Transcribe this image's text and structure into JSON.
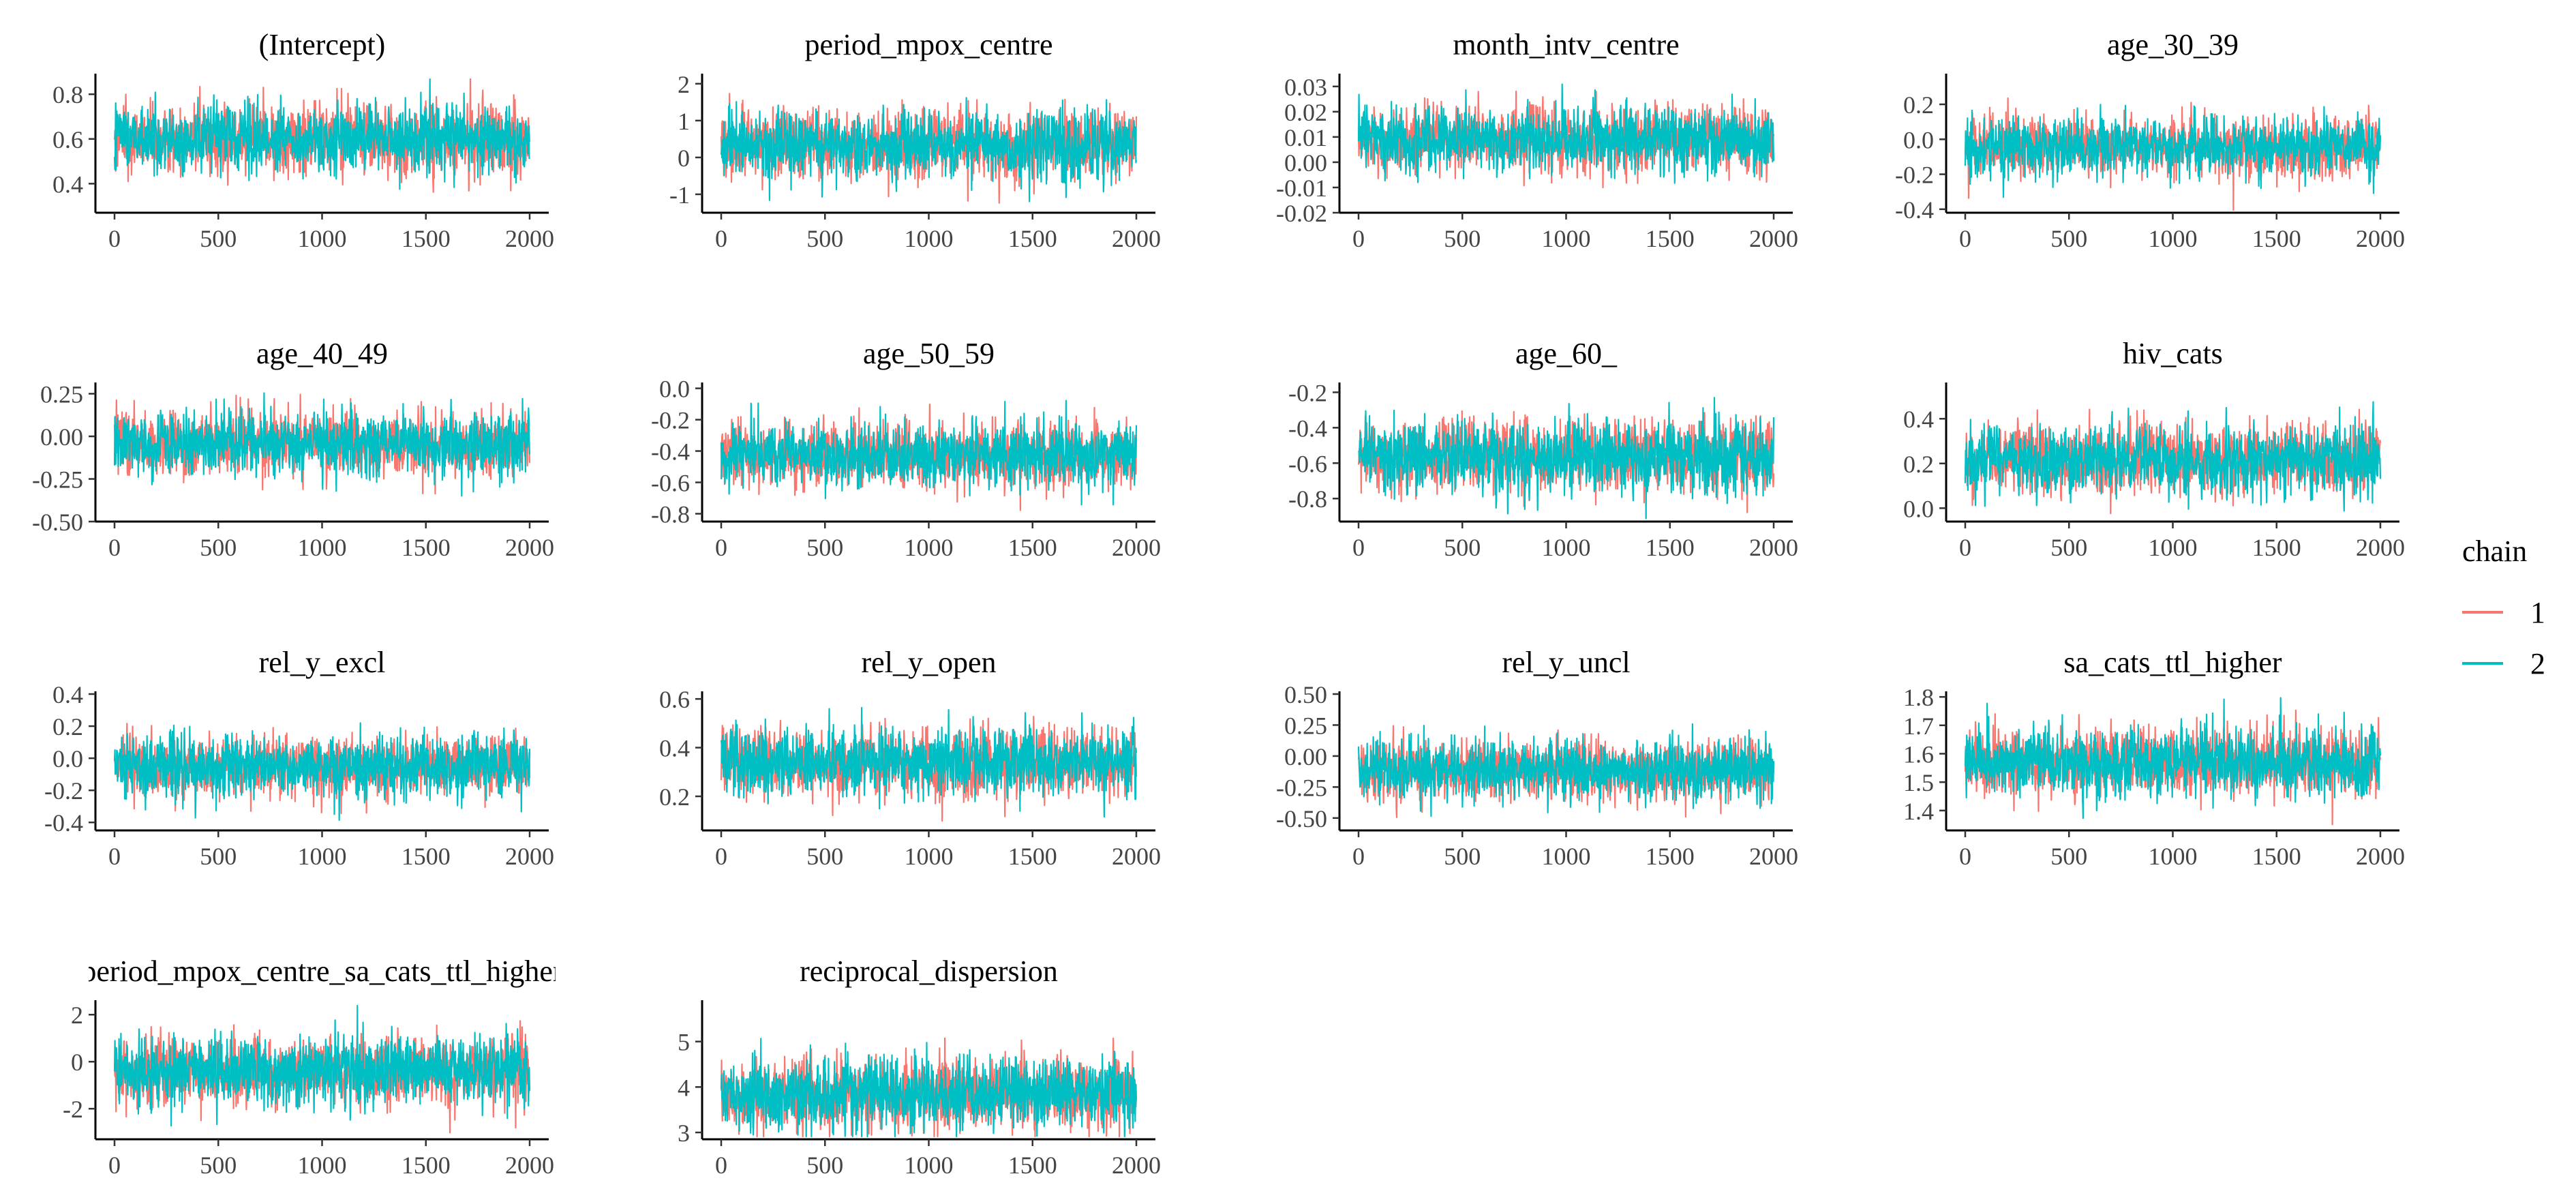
{
  "legend": {
    "title": "chain",
    "entries": [
      {
        "label": "1",
        "color": "#F8766D"
      },
      {
        "label": "2",
        "color": "#00BFC4"
      }
    ]
  },
  "chart_data": [
    {
      "type": "line",
      "title": "(Intercept)",
      "xlim": [
        0,
        2000
      ],
      "ylim": [
        0.27,
        0.88
      ],
      "x_ticks": [
        0,
        500,
        1000,
        1500,
        2000
      ],
      "x_tick_labels": [
        "0",
        "500",
        "1000",
        "1500",
        "2000"
      ],
      "y_ticks": [
        0.4,
        0.6,
        0.8
      ],
      "y_tick_labels": [
        "0.4",
        "0.6",
        "0.8"
      ],
      "series": [
        {
          "name": "1",
          "color": "#F8766D",
          "center": 0.6,
          "spread": 0.09
        },
        {
          "name": "2",
          "color": "#00BFC4",
          "center": 0.6,
          "spread": 0.09
        }
      ]
    },
    {
      "type": "line",
      "title": "period_mpox_centre",
      "xlim": [
        0,
        2000
      ],
      "ylim": [
        -1.5,
        2.2
      ],
      "x_ticks": [
        0,
        500,
        1000,
        1500,
        2000
      ],
      "x_tick_labels": [
        "0",
        "500",
        "1000",
        "1500",
        "2000"
      ],
      "y_ticks": [
        -1,
        0,
        1,
        2
      ],
      "y_tick_labels": [
        "-1",
        "0",
        "1",
        "2"
      ],
      "series": [
        {
          "name": "1",
          "color": "#F8766D",
          "center": 0.35,
          "spread": 0.55
        },
        {
          "name": "2",
          "color": "#00BFC4",
          "center": 0.35,
          "spread": 0.55
        }
      ]
    },
    {
      "type": "line",
      "title": "month_intv_centre",
      "xlim": [
        0,
        2000
      ],
      "ylim": [
        -0.02,
        0.034
      ],
      "x_ticks": [
        0,
        500,
        1000,
        1500,
        2000
      ],
      "x_tick_labels": [
        "0",
        "500",
        "1000",
        "1500",
        "2000"
      ],
      "y_ticks": [
        -0.02,
        -0.01,
        0.0,
        0.01,
        0.02,
        0.03
      ],
      "y_tick_labels": [
        "-0.02",
        "-0.01",
        "0.00",
        "0.01",
        "0.02",
        "0.03"
      ],
      "series": [
        {
          "name": "1",
          "color": "#F8766D",
          "center": 0.009,
          "spread": 0.0075
        },
        {
          "name": "2",
          "color": "#00BFC4",
          "center": 0.009,
          "spread": 0.0075
        }
      ]
    },
    {
      "type": "line",
      "title": "age_30_39",
      "xlim": [
        0,
        2000
      ],
      "ylim": [
        -0.42,
        0.36
      ],
      "x_ticks": [
        0,
        500,
        1000,
        1500,
        2000
      ],
      "x_tick_labels": [
        "0",
        "500",
        "1000",
        "1500",
        "2000"
      ],
      "y_ticks": [
        -0.4,
        -0.2,
        0.0,
        0.2
      ],
      "y_tick_labels": [
        "-0.4",
        "-0.2",
        "0.0",
        "0.2"
      ],
      "series": [
        {
          "name": "1",
          "color": "#F8766D",
          "center": -0.04,
          "spread": 0.1
        },
        {
          "name": "2",
          "color": "#00BFC4",
          "center": -0.04,
          "spread": 0.1
        }
      ]
    },
    {
      "type": "line",
      "title": "age_40_49",
      "xlim": [
        0,
        2000
      ],
      "ylim": [
        -0.5,
        0.3
      ],
      "x_ticks": [
        0,
        500,
        1000,
        1500,
        2000
      ],
      "x_tick_labels": [
        "0",
        "500",
        "1000",
        "1500",
        "2000"
      ],
      "y_ticks": [
        -0.5,
        -0.25,
        0.0,
        0.25
      ],
      "y_tick_labels": [
        "-0.50",
        "-0.25",
        "0.00",
        "0.25"
      ],
      "series": [
        {
          "name": "1",
          "color": "#F8766D",
          "center": -0.04,
          "spread": 0.11
        },
        {
          "name": "2",
          "color": "#00BFC4",
          "center": -0.04,
          "spread": 0.11
        }
      ]
    },
    {
      "type": "line",
      "title": "age_50_59",
      "xlim": [
        0,
        2000
      ],
      "ylim": [
        -0.85,
        0.02
      ],
      "x_ticks": [
        0,
        500,
        1000,
        1500,
        2000
      ],
      "x_tick_labels": [
        "0",
        "500",
        "1000",
        "1500",
        "2000"
      ],
      "y_ticks": [
        -0.8,
        -0.6,
        -0.4,
        -0.2,
        0.0
      ],
      "y_tick_labels": [
        "-0.8",
        "-0.6",
        "-0.4",
        "-0.2",
        "0.0"
      ],
      "series": [
        {
          "name": "1",
          "color": "#F8766D",
          "center": -0.42,
          "spread": 0.12
        },
        {
          "name": "2",
          "color": "#00BFC4",
          "center": -0.42,
          "spread": 0.12
        }
      ]
    },
    {
      "type": "line",
      "title": "age_60_",
      "xlim": [
        0,
        2000
      ],
      "ylim": [
        -0.93,
        -0.16
      ],
      "x_ticks": [
        0,
        500,
        1000,
        1500,
        2000
      ],
      "x_tick_labels": [
        "0",
        "500",
        "1000",
        "1500",
        "2000"
      ],
      "y_ticks": [
        -0.8,
        -0.6,
        -0.4,
        -0.2
      ],
      "y_tick_labels": [
        "-0.8",
        "-0.6",
        "-0.4",
        "-0.2"
      ],
      "series": [
        {
          "name": "1",
          "color": "#F8766D",
          "center": -0.56,
          "spread": 0.12
        },
        {
          "name": "2",
          "color": "#00BFC4",
          "center": -0.56,
          "spread": 0.12
        }
      ]
    },
    {
      "type": "line",
      "title": "hiv_cats",
      "xlim": [
        0,
        2000
      ],
      "ylim": [
        -0.06,
        0.55
      ],
      "x_ticks": [
        0,
        500,
        1000,
        1500,
        2000
      ],
      "x_tick_labels": [
        "0",
        "500",
        "1000",
        "1500",
        "2000"
      ],
      "y_ticks": [
        0.0,
        0.2,
        0.4
      ],
      "y_tick_labels": [
        "0.0",
        "0.2",
        "0.4"
      ],
      "series": [
        {
          "name": "1",
          "color": "#F8766D",
          "center": 0.22,
          "spread": 0.09
        },
        {
          "name": "2",
          "color": "#00BFC4",
          "center": 0.22,
          "spread": 0.09
        }
      ]
    },
    {
      "type": "line",
      "title": "rel_y_excl",
      "xlim": [
        0,
        2000
      ],
      "ylim": [
        -0.45,
        0.4
      ],
      "x_ticks": [
        0,
        500,
        1000,
        1500,
        2000
      ],
      "x_tick_labels": [
        "0",
        "500",
        "1000",
        "1500",
        "2000"
      ],
      "y_ticks": [
        -0.4,
        -0.2,
        0.0,
        0.2,
        0.4
      ],
      "y_tick_labels": [
        "-0.4",
        "-0.2",
        "0.0",
        "0.2",
        "0.4"
      ],
      "series": [
        {
          "name": "1",
          "color": "#F8766D",
          "center": -0.05,
          "spread": 0.11
        },
        {
          "name": "2",
          "color": "#00BFC4",
          "center": -0.05,
          "spread": 0.11
        }
      ]
    },
    {
      "type": "line",
      "title": "rel_y_open",
      "xlim": [
        0,
        2000
      ],
      "ylim": [
        0.06,
        0.62
      ],
      "x_ticks": [
        0,
        500,
        1000,
        1500,
        2000
      ],
      "x_tick_labels": [
        "0",
        "500",
        "1000",
        "1500",
        "2000"
      ],
      "y_ticks": [
        0.2,
        0.4,
        0.6
      ],
      "y_tick_labels": [
        "0.2",
        "0.4",
        "0.6"
      ],
      "series": [
        {
          "name": "1",
          "color": "#F8766D",
          "center": 0.34,
          "spread": 0.08
        },
        {
          "name": "2",
          "color": "#00BFC4",
          "center": 0.34,
          "spread": 0.08
        }
      ]
    },
    {
      "type": "line",
      "title": "rel_y_uncl",
      "xlim": [
        0,
        2000
      ],
      "ylim": [
        -0.6,
        0.5
      ],
      "x_ticks": [
        0,
        500,
        1000,
        1500,
        2000
      ],
      "x_tick_labels": [
        "0",
        "500",
        "1000",
        "1500",
        "2000"
      ],
      "y_ticks": [
        -0.5,
        -0.25,
        0.0,
        0.25,
        0.5
      ],
      "y_tick_labels": [
        "-0.50",
        "-0.25",
        "0.00",
        "0.25",
        "0.50"
      ],
      "series": [
        {
          "name": "1",
          "color": "#F8766D",
          "center": -0.11,
          "spread": 0.14
        },
        {
          "name": "2",
          "color": "#00BFC4",
          "center": -0.11,
          "spread": 0.14
        }
      ]
    },
    {
      "type": "line",
      "title": "sa_cats_ttl_higher",
      "xlim": [
        0,
        2000
      ],
      "ylim": [
        1.33,
        1.81
      ],
      "x_ticks": [
        0,
        500,
        1000,
        1500,
        2000
      ],
      "x_tick_labels": [
        "0",
        "500",
        "1000",
        "1500",
        "2000"
      ],
      "y_ticks": [
        1.4,
        1.5,
        1.6,
        1.7,
        1.8
      ],
      "y_tick_labels": [
        "1.4",
        "1.5",
        "1.6",
        "1.7",
        "1.8"
      ],
      "series": [
        {
          "name": "1",
          "color": "#F8766D",
          "center": 1.57,
          "spread": 0.07
        },
        {
          "name": "2",
          "color": "#00BFC4",
          "center": 1.57,
          "spread": 0.07
        }
      ]
    },
    {
      "type": "line",
      "title": "period_mpox_centre_sa_cats_ttl_higher",
      "xlim": [
        0,
        2000
      ],
      "ylim": [
        -3.3,
        2.5
      ],
      "x_ticks": [
        0,
        500,
        1000,
        1500,
        2000
      ],
      "x_tick_labels": [
        "0",
        "500",
        "1000",
        "1500",
        "2000"
      ],
      "y_ticks": [
        -2,
        0,
        2
      ],
      "y_tick_labels": [
        "-2",
        "0",
        "2"
      ],
      "series": [
        {
          "name": "1",
          "color": "#F8766D",
          "center": -0.4,
          "spread": 0.85
        },
        {
          "name": "2",
          "color": "#00BFC4",
          "center": -0.4,
          "spread": 0.85
        }
      ]
    },
    {
      "type": "line",
      "title": "reciprocal_dispersion",
      "xlim": [
        0,
        2000
      ],
      "ylim": [
        2.85,
        5.85
      ],
      "x_ticks": [
        0,
        500,
        1000,
        1500,
        2000
      ],
      "x_tick_labels": [
        "0",
        "500",
        "1000",
        "1500",
        "2000"
      ],
      "y_ticks": [
        3,
        4,
        5
      ],
      "y_tick_labels": [
        "3",
        "4",
        "5"
      ],
      "series": [
        {
          "name": "1",
          "color": "#F8766D",
          "center": 3.85,
          "spread": 0.45
        },
        {
          "name": "2",
          "color": "#00BFC4",
          "center": 3.85,
          "spread": 0.45
        }
      ]
    }
  ]
}
